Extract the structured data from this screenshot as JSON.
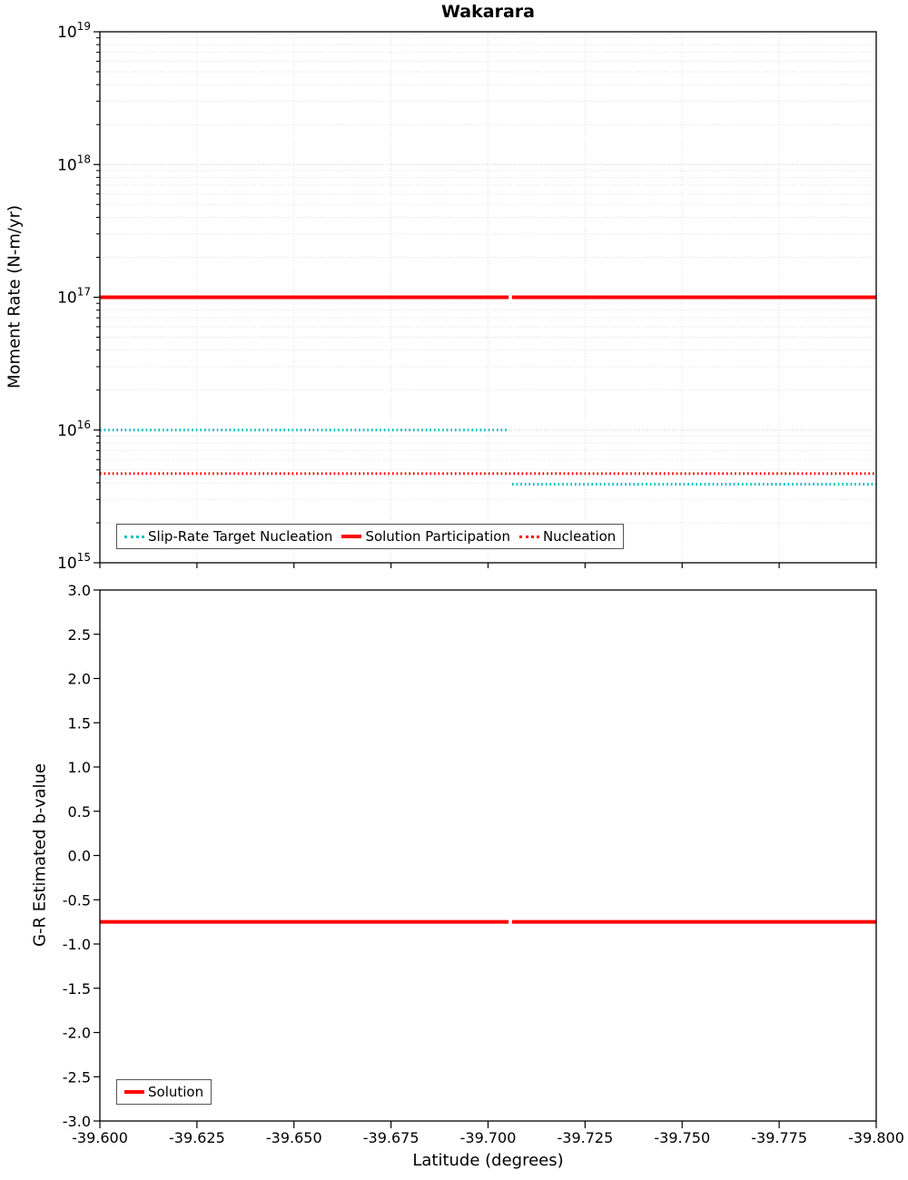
{
  "chart_data": [
    {
      "type": "line",
      "name": "moment-rate",
      "title": "Wakarara",
      "ylabel": "Moment Rate (N-m/yr)",
      "yscale": "log",
      "ylim_exp": [
        15,
        19
      ],
      "y_major_ticks_exp": [
        15,
        16,
        17,
        18,
        19
      ],
      "xlim": [
        -39.6,
        -39.8
      ],
      "x_ticks": [
        "-39.600",
        "-39.625",
        "-39.650",
        "-39.675",
        "-39.700",
        "-39.725",
        "-39.750",
        "-39.775",
        "-39.800"
      ],
      "grid": true,
      "legend": {
        "position": "inside-bottom-left",
        "entries": [
          {
            "label": "Slip-Rate Target Nucleation",
            "color": "#00bfbf",
            "style": "dotted"
          },
          {
            "label": "Solution Participation",
            "color": "#ff0000",
            "style": "solid"
          },
          {
            "label": "Nucleation",
            "color": "#ff0000",
            "style": "dotted"
          }
        ]
      },
      "series": [
        {
          "name": "Slip-Rate Target Nucleation",
          "color": "#00bfbf",
          "style": "dotted",
          "width": 3,
          "segments": [
            {
              "x": [
                -39.6,
                -39.7053
              ],
              "y": [
                1e+16,
                1e+16
              ]
            },
            {
              "x": [
                -39.7062,
                -39.8
              ],
              "y": [
                3900000000000000.0,
                3900000000000000.0
              ]
            }
          ]
        },
        {
          "name": "Solution Participation",
          "color": "#ff0000",
          "style": "solid",
          "width": 4,
          "segments": [
            {
              "x": [
                -39.6,
                -39.7053
              ],
              "y": [
                1e+17,
                1e+17
              ]
            },
            {
              "x": [
                -39.7062,
                -39.8
              ],
              "y": [
                1e+17,
                1e+17
              ]
            }
          ]
        },
        {
          "name": "Nucleation",
          "color": "#ff0000",
          "style": "dotted",
          "width": 3,
          "segments": [
            {
              "x": [
                -39.6,
                -39.8
              ],
              "y": [
                4700000000000000.0,
                4700000000000000.0
              ]
            }
          ]
        }
      ]
    },
    {
      "type": "line",
      "name": "b-value",
      "xlabel": "Latitude (degrees)",
      "ylabel": "G-R Estimated b-value",
      "yscale": "linear",
      "ylim": [
        -3.0,
        3.0
      ],
      "y_tick_step": 0.5,
      "xlim": [
        -39.6,
        -39.8
      ],
      "x_ticks": [
        "-39.600",
        "-39.625",
        "-39.650",
        "-39.675",
        "-39.700",
        "-39.725",
        "-39.750",
        "-39.775",
        "-39.800"
      ],
      "grid": false,
      "legend": {
        "position": "inside-bottom-left",
        "entries": [
          {
            "label": "Solution",
            "color": "#ff0000",
            "style": "solid"
          }
        ]
      },
      "series": [
        {
          "name": "Solution",
          "color": "#ff0000",
          "style": "solid",
          "width": 4,
          "segments": [
            {
              "x": [
                -39.6,
                -39.7053
              ],
              "y": [
                -0.75,
                -0.75
              ]
            },
            {
              "x": [
                -39.7062,
                -39.8
              ],
              "y": [
                -0.75,
                -0.75
              ]
            }
          ]
        }
      ]
    }
  ]
}
